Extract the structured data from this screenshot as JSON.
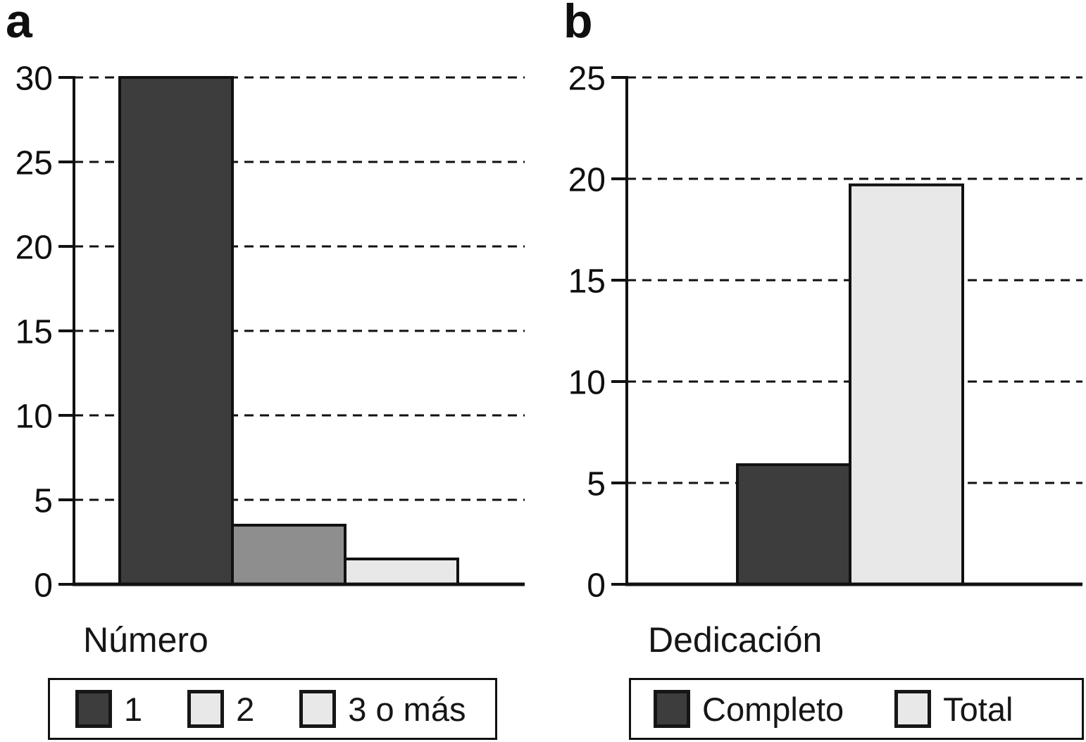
{
  "figure": {
    "background": "#ffffff",
    "axis_color": "#111111",
    "text_color": "#161616"
  },
  "chart_data": [
    {
      "type": "bar",
      "panel_label": "a",
      "xlabel": "Número",
      "ylabel": "",
      "categories": [
        "1",
        "2",
        "3 o más"
      ],
      "values": [
        30,
        3.5,
        1.5
      ],
      "bar_colors": [
        "#3d3d3d",
        "#8e8e8e",
        "#e8e8e8"
      ],
      "ylim": [
        0,
        30
      ],
      "yticks": [
        0,
        5,
        10,
        15,
        20,
        25,
        30
      ],
      "grid": "horizontal-dashed",
      "legend_position": "bottom",
      "legend": [
        {
          "label": "1",
          "color": "#3d3d3d"
        },
        {
          "label": "2",
          "color": "#e8e8e8"
        },
        {
          "label": "3 o más",
          "color": "#e8e8e8"
        }
      ]
    },
    {
      "type": "bar",
      "panel_label": "b",
      "xlabel": "Dedicación",
      "ylabel": "",
      "categories": [
        "Completo",
        "Total"
      ],
      "values": [
        5.9,
        19.7
      ],
      "bar_colors": [
        "#3d3d3d",
        "#e8e8e8"
      ],
      "ylim": [
        0,
        25
      ],
      "yticks": [
        0,
        5,
        10,
        15,
        20,
        25
      ],
      "grid": "horizontal-dashed",
      "legend_position": "bottom",
      "legend": [
        {
          "label": "Completo",
          "color": "#3d3d3d"
        },
        {
          "label": "Total",
          "color": "#e8e8e8"
        }
      ]
    }
  ]
}
